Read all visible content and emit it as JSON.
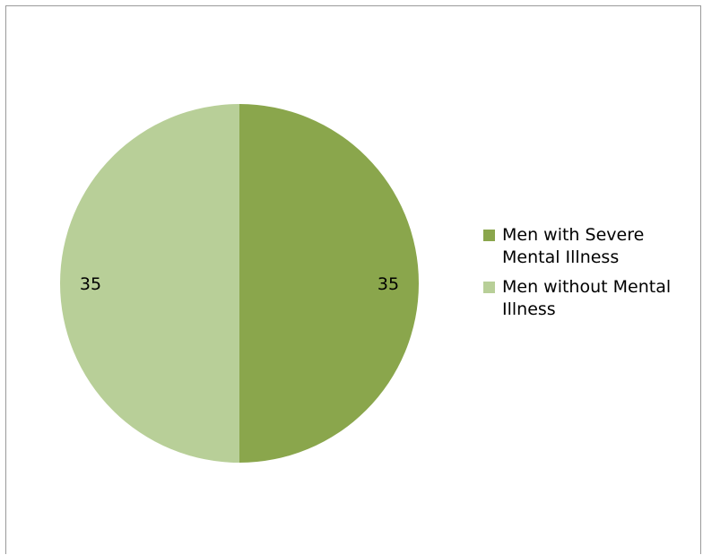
{
  "chart_data": {
    "type": "pie",
    "title": "",
    "slices": [
      {
        "name": "Men with Severe Mental Illness",
        "value": 35,
        "label": "35",
        "color": "#8aa64c"
      },
      {
        "name": "Men without Mental Illness",
        "value": 35,
        "label": "35",
        "color": "#b8cf98"
      }
    ],
    "legend_position": "right",
    "start_angle": "top, clockwise"
  }
}
